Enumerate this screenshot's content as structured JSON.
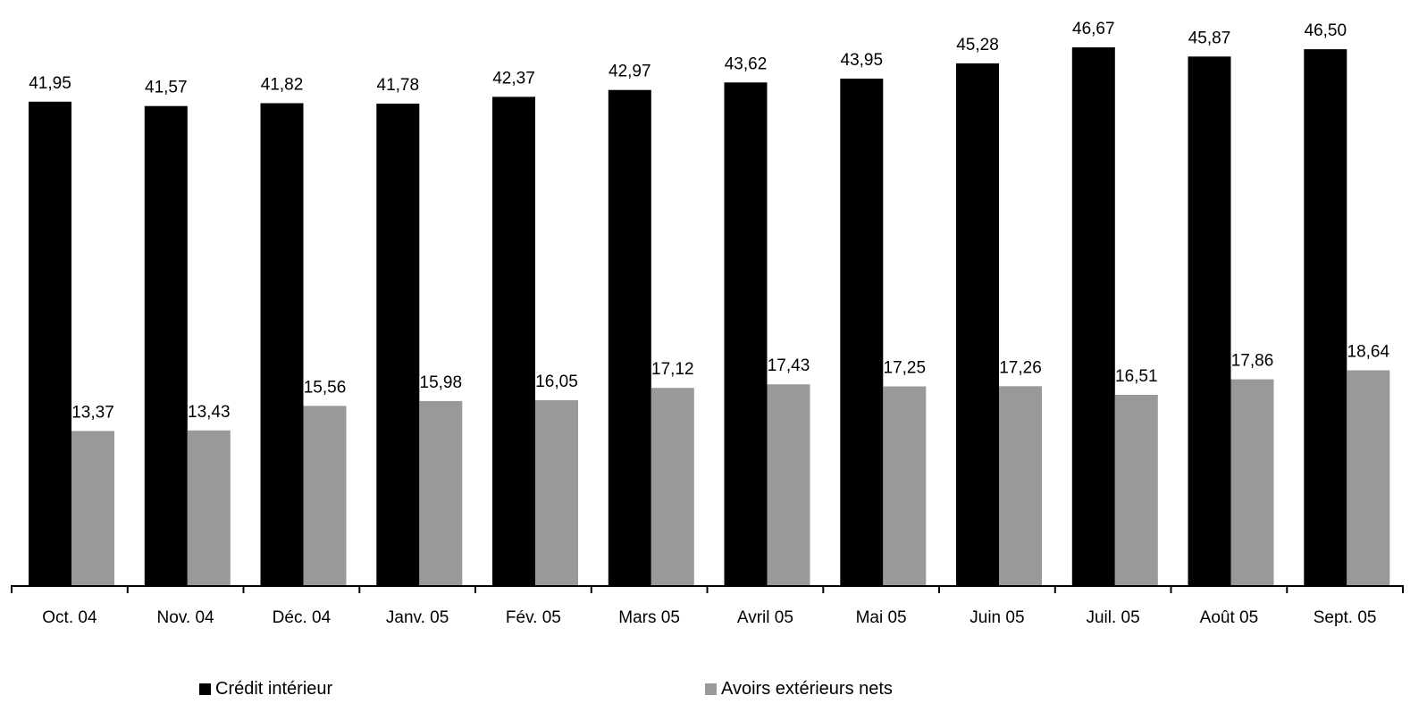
{
  "chart_data": {
    "type": "bar",
    "categories": [
      "Oct. 04",
      "Nov. 04",
      "Déc. 04",
      "Janv. 05",
      "Fév. 05",
      "Mars 05",
      "Avril 05",
      "Mai 05",
      "Juin 05",
      "Juil. 05",
      "Août 05",
      "Sept. 05"
    ],
    "series": [
      {
        "name": "Crédit intérieur",
        "color": "#000000",
        "values": [
          41.95,
          41.57,
          41.82,
          41.78,
          42.37,
          42.97,
          43.62,
          43.95,
          45.28,
          46.67,
          45.87,
          46.5
        ],
        "labels": [
          "41,95",
          "41,57",
          "41,82",
          "41,78",
          "42,37",
          "42,97",
          "43,62",
          "43,95",
          "45,28",
          "46,67",
          "45,87",
          "46,50"
        ]
      },
      {
        "name": "Avoirs extérieurs nets",
        "color": "#999999",
        "values": [
          13.37,
          13.43,
          15.56,
          15.98,
          16.05,
          17.12,
          17.43,
          17.25,
          17.26,
          16.51,
          17.86,
          18.64
        ],
        "labels": [
          "13,37",
          "13,43",
          "15,56",
          "15,98",
          "16,05",
          "17,12",
          "17,43",
          "17,25",
          "17,26",
          "16,51",
          "17,86",
          "18,64"
        ]
      }
    ],
    "ylim": [
      0,
      50
    ],
    "grid": false,
    "legend_position": "bottom"
  }
}
